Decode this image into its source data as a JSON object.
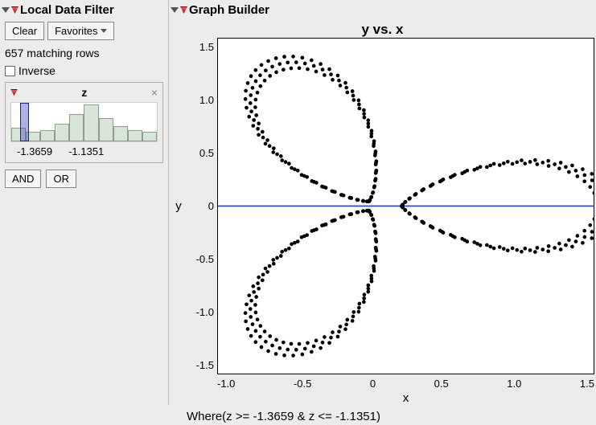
{
  "left": {
    "title": "Local Data Filter",
    "clear": "Clear",
    "favorites": "Favorites",
    "matching": "657 matching rows",
    "inverse": "Inverse",
    "filter": {
      "var": "z",
      "hist_heights": [
        0.35,
        0.25,
        0.3,
        0.45,
        0.7,
        0.95,
        0.6,
        0.4,
        0.3,
        0.25
      ],
      "sel_left_pct": 6,
      "sel_width_pct": 6,
      "lo": "-1.3659",
      "hi": "-1.1351"
    },
    "and": "AND",
    "or": "OR"
  },
  "right": {
    "title": "Graph Builder",
    "chart_title": "y vs. x",
    "y_label": "y",
    "x_label": "x",
    "y_ticks": [
      "1.5",
      "1.0",
      "0.5",
      "0",
      "-0.5",
      "-1.0",
      "-1.5"
    ],
    "x_ticks": [
      "-1.0",
      "-0.5",
      "0",
      "0.5",
      "1.0",
      "1.5"
    ],
    "where": "Where(z >= -1.3659 & z <= -1.1351)",
    "plot": {
      "xlim": [
        -1.15,
        1.65
      ],
      "ylim": [
        -1.55,
        1.55
      ],
      "point_radius": 2.2,
      "point_color": "#000000",
      "hline_y": 0,
      "hline_color": "#2040d0",
      "petals": [
        {
          "angle_deg": 120,
          "len_lo": 1.38,
          "len_hi": 1.5,
          "tail_r": 0.05
        },
        {
          "angle_deg": 240,
          "len_lo": 1.38,
          "len_hi": 1.5,
          "tail_r": 0.05
        },
        {
          "angle_deg": 0,
          "len_lo": 1.46,
          "len_hi": 1.58,
          "tail_r": 0.22
        }
      ],
      "steps": 48,
      "jitter_rings": 3
    }
  }
}
